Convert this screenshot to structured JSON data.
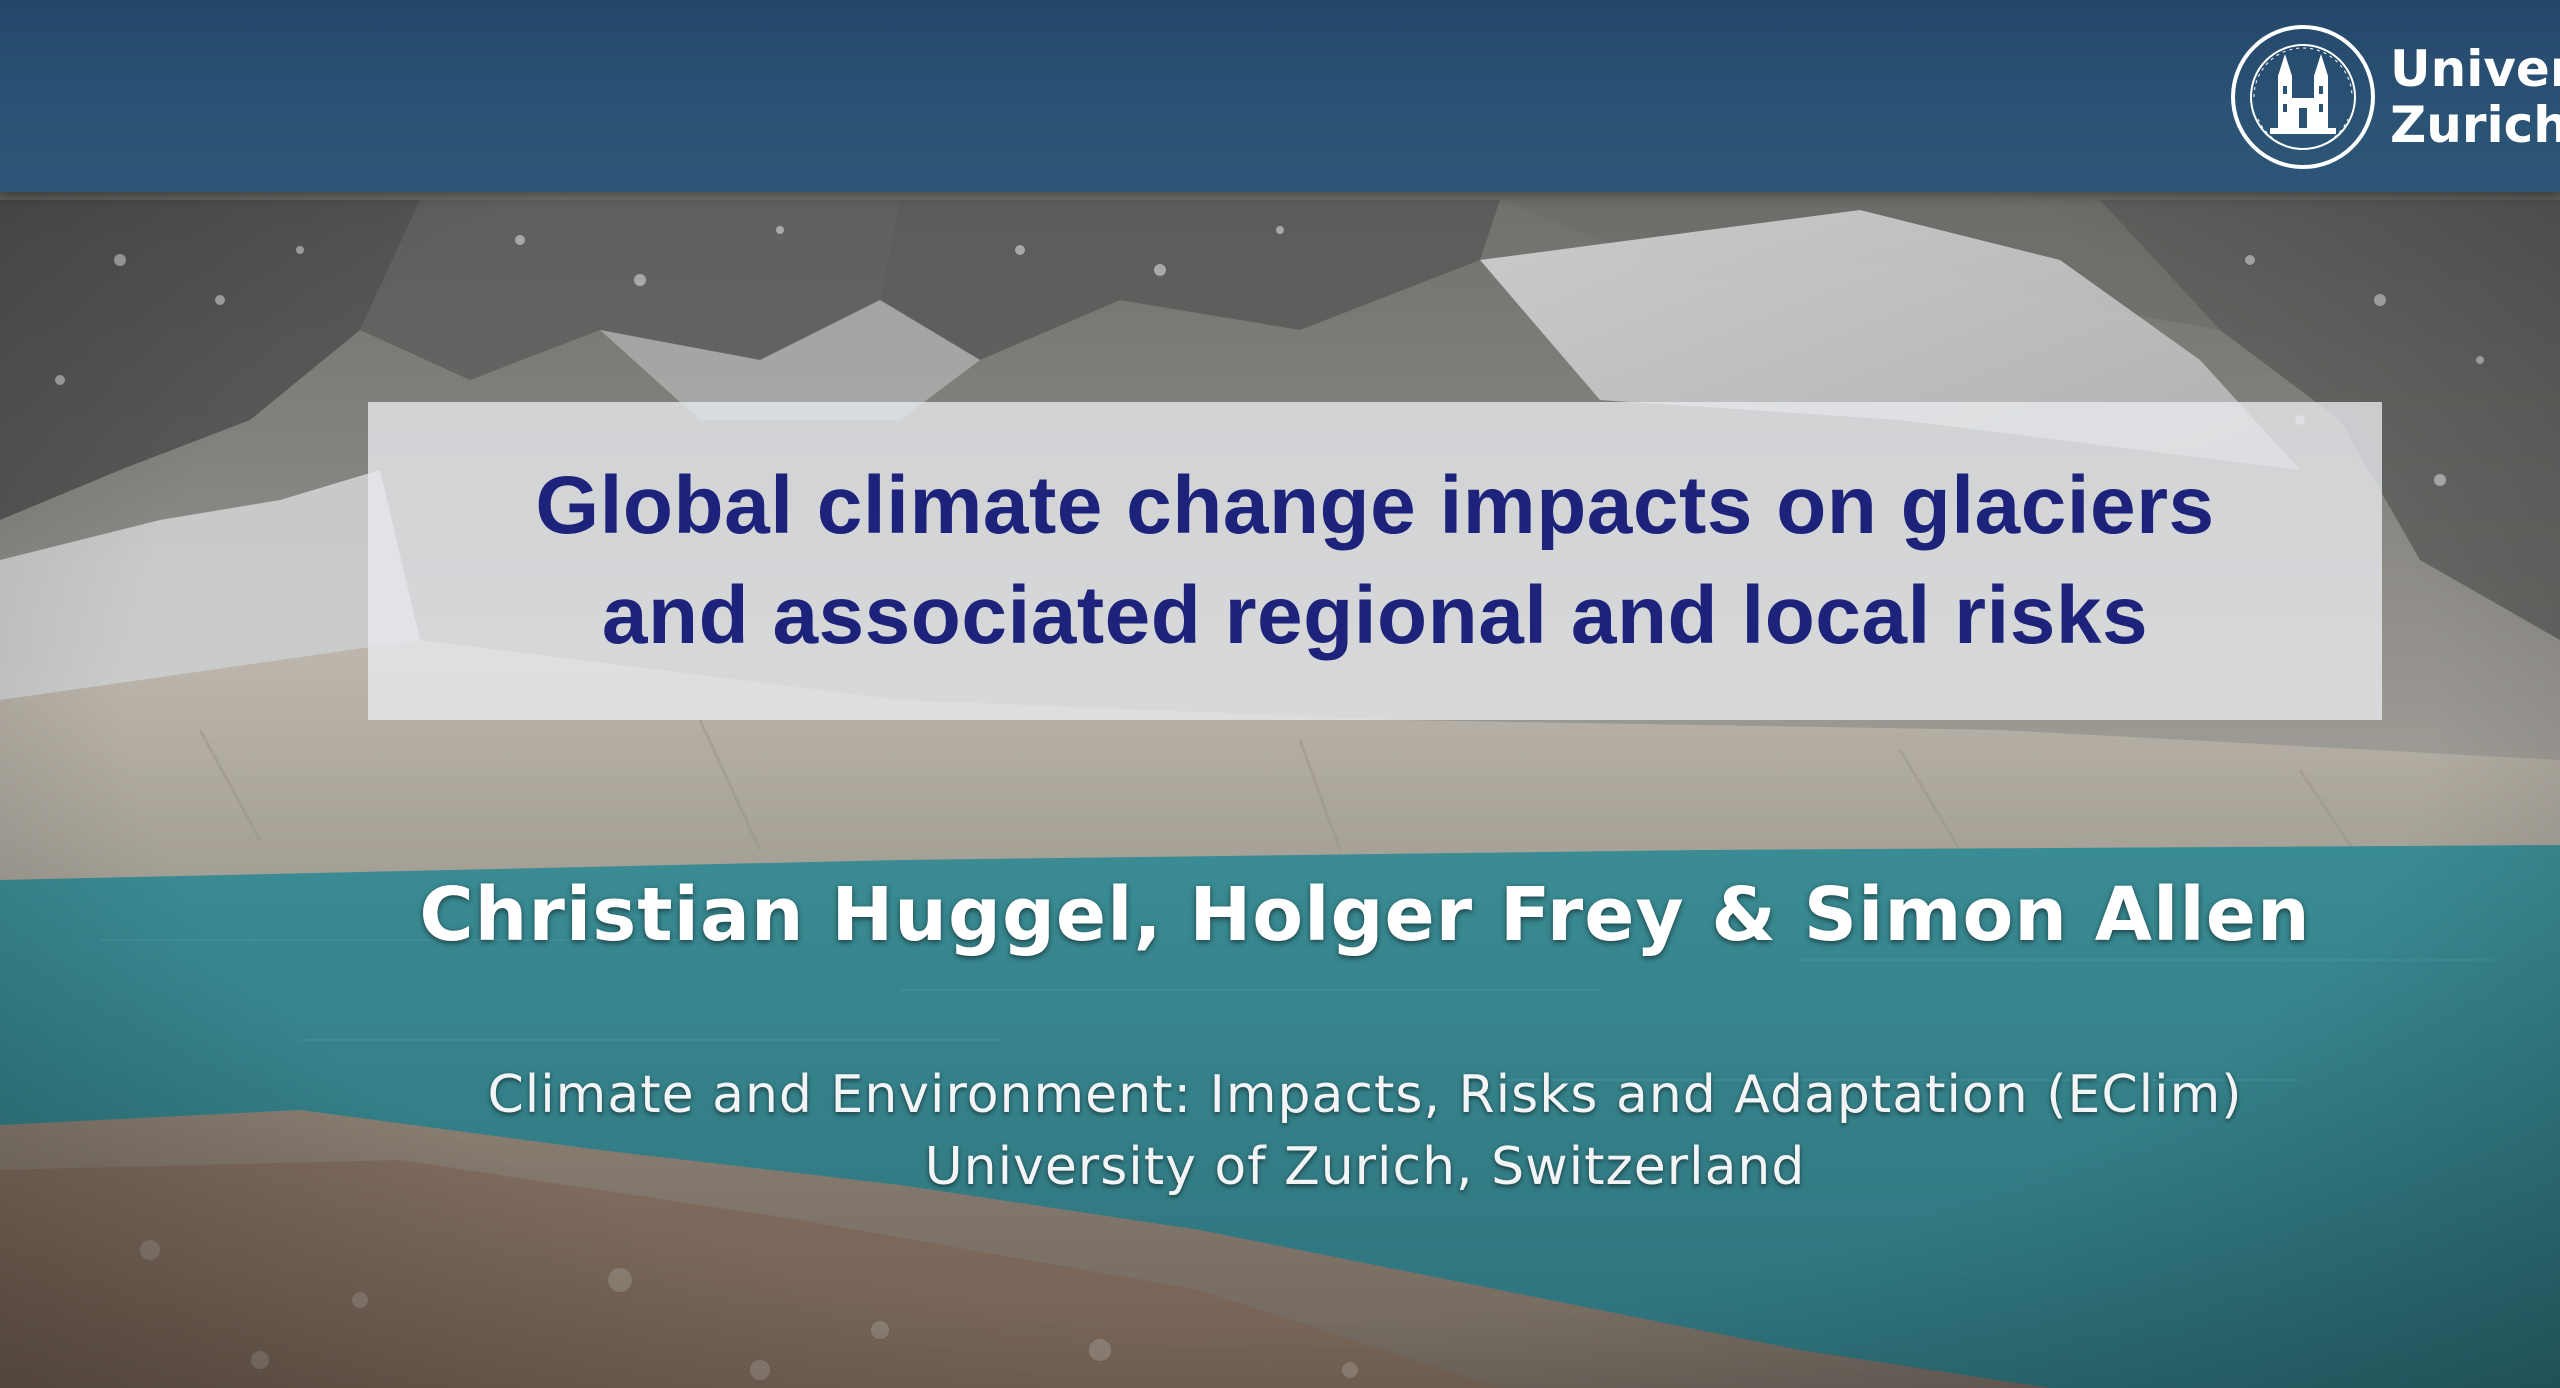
{
  "slide": {
    "logo": {
      "line1": "Univer",
      "line2": "Zurich"
    },
    "title": {
      "line1": "Global climate change impacts on glaciers",
      "line2": "and associated regional and local risks"
    },
    "authors": "Christian Huggel, Holger Frey & Simon Allen",
    "affiliation": {
      "line1": "Climate and Environment: Impacts, Risks and Adaptation (EClim)",
      "line2": "University of Zurich, Switzerland"
    }
  },
  "colors": {
    "header_bar": "#2a5274",
    "title_text": "#1d237a",
    "lake": "#3b8a92"
  }
}
